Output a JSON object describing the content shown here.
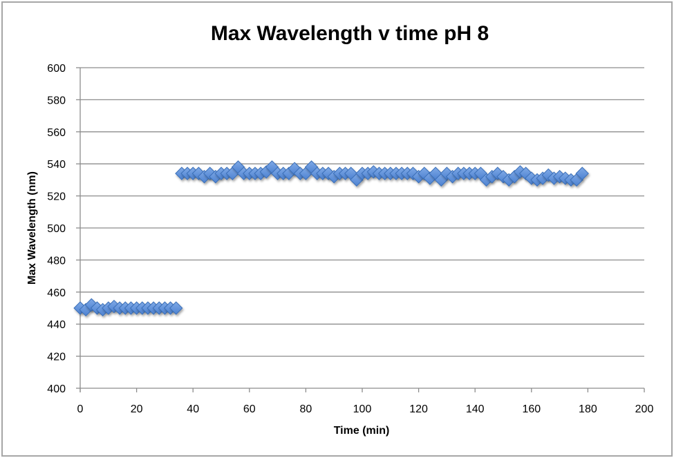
{
  "chart_data": {
    "type": "scatter",
    "title": "Max Wavelength v time pH 8",
    "xlabel": "Time (min)",
    "ylabel": "Max Wavelength (nm)",
    "xlim": [
      0,
      200
    ],
    "ylim": [
      400,
      600
    ],
    "x_ticks": [
      "0",
      "20",
      "40",
      "60",
      "80",
      "100",
      "120",
      "140",
      "160",
      "180",
      "200"
    ],
    "y_ticks": [
      "400",
      "420",
      "440",
      "460",
      "480",
      "500",
      "520",
      "540",
      "560",
      "580",
      "600"
    ],
    "grid": "horizontal",
    "legend": "none",
    "marker": "diamond",
    "colors": {
      "marker_fill": "#5b8fd9",
      "marker_stroke": "#3b6fb8",
      "grid": "#8c8c8c",
      "axis": "#8c8c8c"
    },
    "series": [
      {
        "name": "Max Wavelength",
        "x": [
          0,
          2,
          4,
          6,
          8,
          10,
          12,
          14,
          16,
          18,
          20,
          22,
          24,
          26,
          28,
          30,
          32,
          34,
          36,
          38,
          40,
          42,
          44,
          46,
          48,
          50,
          52,
          54,
          56,
          58,
          60,
          62,
          64,
          66,
          68,
          70,
          72,
          74,
          76,
          78,
          80,
          82,
          84,
          86,
          88,
          90,
          92,
          94,
          96,
          98,
          100,
          102,
          104,
          106,
          108,
          110,
          112,
          114,
          116,
          118,
          120,
          122,
          124,
          126,
          128,
          130,
          132,
          134,
          136,
          138,
          140,
          142,
          144,
          146,
          148,
          150,
          152,
          154,
          156,
          158,
          160,
          162,
          164,
          166,
          168,
          170,
          172,
          174,
          176,
          178
        ],
        "y": [
          450,
          449,
          452,
          450,
          449,
          450,
          451,
          450,
          450,
          450,
          450,
          450,
          450,
          450,
          450,
          450,
          450,
          450,
          534,
          534,
          534,
          534,
          532,
          534,
          532,
          534,
          534,
          534,
          538,
          534,
          534,
          534,
          534,
          535,
          538,
          534,
          534,
          534,
          537,
          534,
          534,
          538,
          534,
          534,
          534,
          532,
          534,
          534,
          534,
          530,
          534,
          534,
          535,
          534,
          534,
          534,
          534,
          534,
          534,
          534,
          532,
          534,
          531,
          534,
          530,
          534,
          532,
          534,
          534,
          534,
          534,
          534,
          530,
          532,
          534,
          532,
          530,
          532,
          535,
          534,
          531,
          530,
          531,
          533,
          531,
          532,
          531,
          530,
          530,
          534
        ]
      }
    ]
  }
}
